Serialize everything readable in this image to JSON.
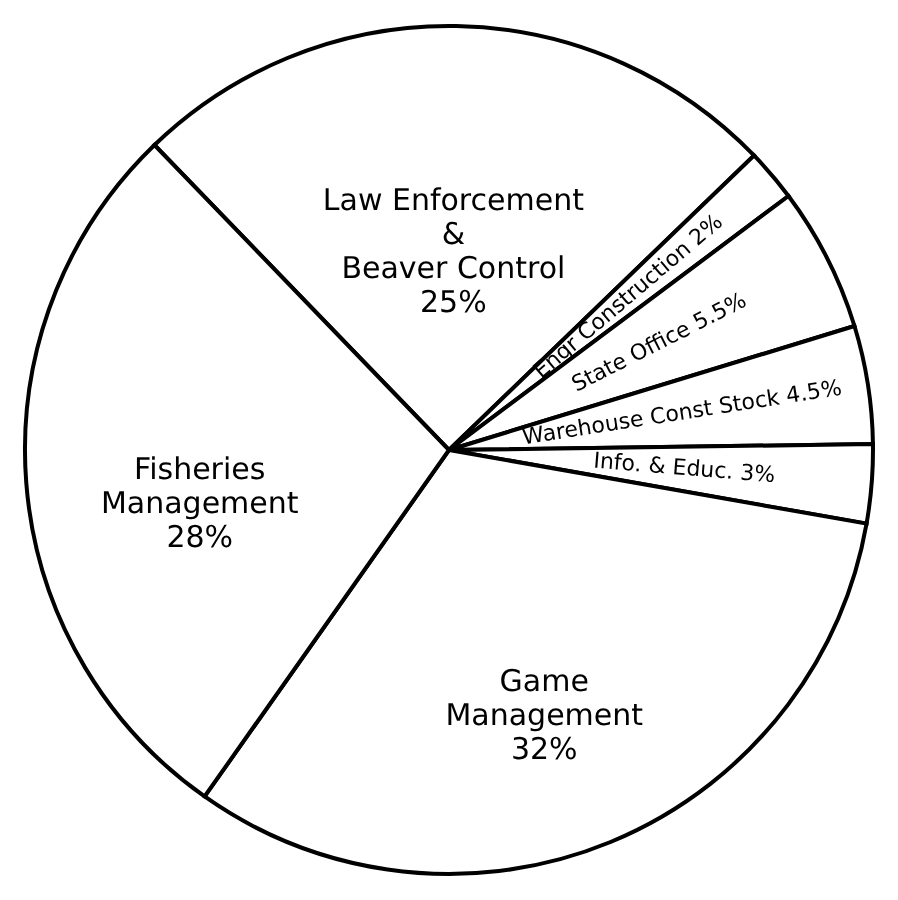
{
  "chart_data": {
    "type": "pie",
    "categories": [
      "Law Enforcement & Beaver Control",
      "Engr Construction",
      "State Office",
      "Warehouse Const Stock",
      "Info. & Educ.",
      "Game Management",
      "Fisheries Management"
    ],
    "values": [
      25,
      2,
      5.5,
      4.5,
      3,
      32,
      28
    ],
    "value_labels": [
      "25%",
      "2%",
      "5.5%",
      "4.5%",
      "3%",
      "32%",
      "28%"
    ],
    "colors": [
      "#ffffff",
      "#ffffff",
      "#ffffff",
      "#ffffff",
      "#ffffff",
      "#ffffff",
      "#ffffff"
    ]
  }
}
